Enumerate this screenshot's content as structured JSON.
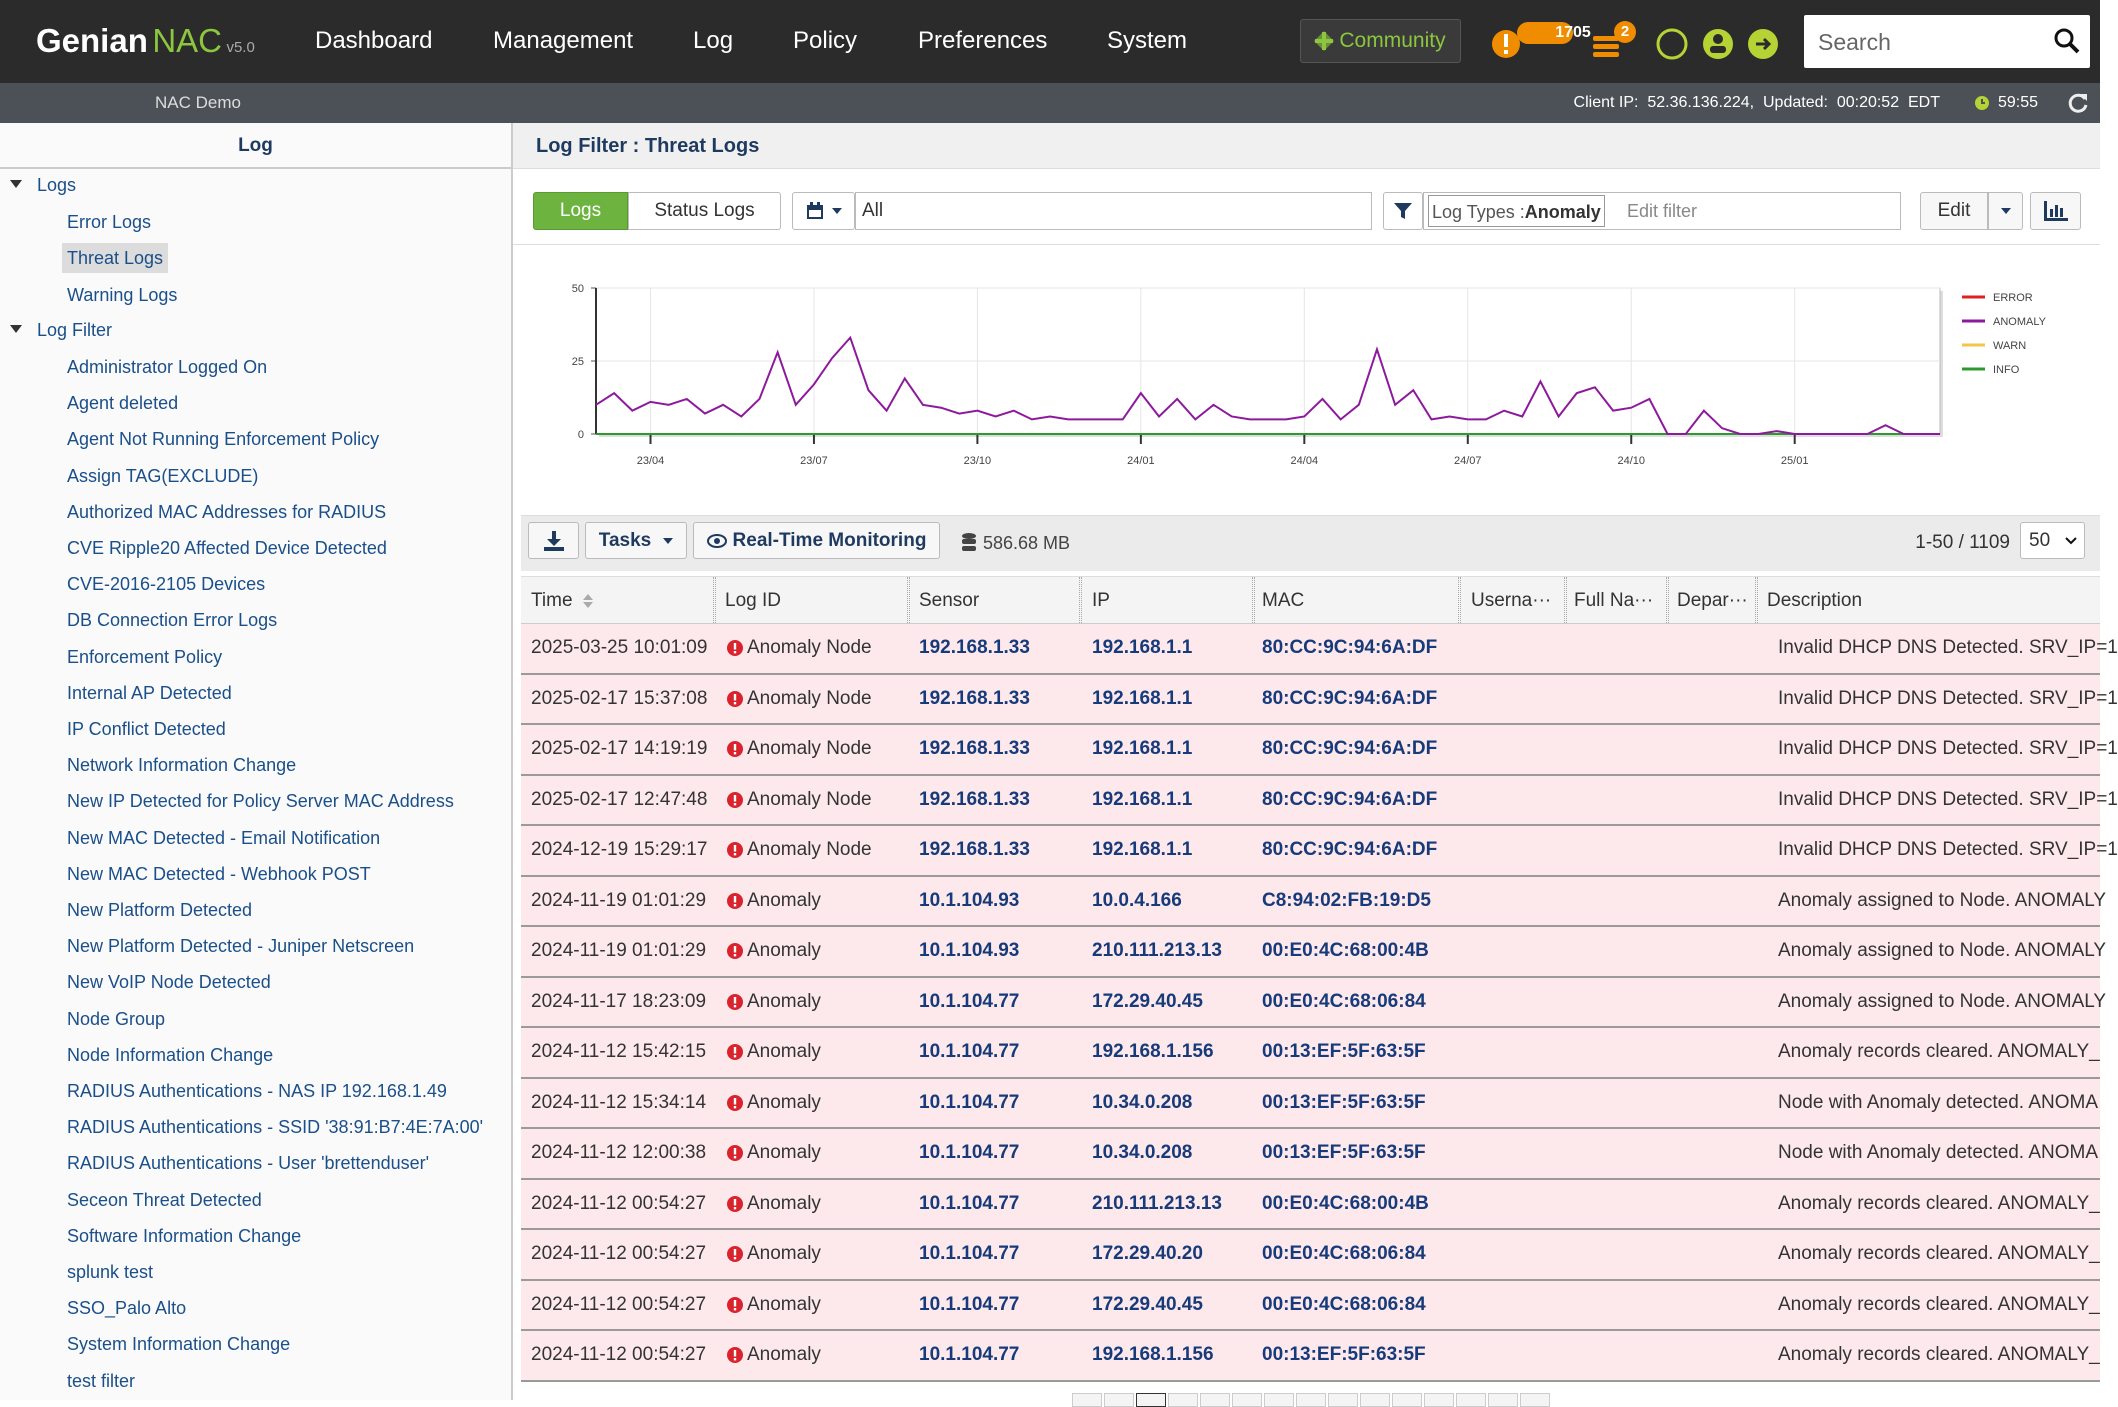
{
  "header": {
    "logo": {
      "brand": "Genian",
      "product": "NAC",
      "version": "v5.0"
    },
    "nav": [
      "Dashboard",
      "Management",
      "Log",
      "Policy",
      "Preferences",
      "System"
    ],
    "community": "Community",
    "alerts_badge": "1705",
    "tasks_badge": "2",
    "search_placeholder": "Search"
  },
  "subbar": {
    "site": "NAC Demo",
    "status": "Client IP:  52.36.136.224,  Updated:  00:20:52  EDT",
    "timer": "59:55"
  },
  "sidebar": {
    "title": "Log",
    "selected": "Threat Logs",
    "groups": [
      {
        "label": "Logs",
        "items": [
          "Error Logs",
          "Threat Logs",
          "Warning Logs"
        ]
      },
      {
        "label": "Log Filter",
        "items": [
          "Administrator Logged On",
          "Agent deleted",
          "Agent Not Running Enforcement Policy",
          "Assign TAG(EXCLUDE)",
          "Authorized MAC Addresses for RADIUS",
          "CVE Ripple20 Affected Device Detected",
          "CVE-2016-2105 Devices",
          "DB Connection Error Logs",
          "Enforcement Policy",
          "Internal AP Detected",
          "IP Conflict Detected",
          "Network Information Change",
          "New IP Detected for Policy Server MAC Address",
          "New MAC Detected - Email Notification",
          "New MAC Detected - Webhook POST",
          "New Platform Detected",
          "New Platform Detected - Juniper Netscreen",
          "New VoIP Node Detected",
          "Node Group",
          "Node Information Change",
          "RADIUS Authentications - NAS IP 192.168.1.49",
          "RADIUS Authentications - SSID '38:91:B7:4E:7A:00'",
          "RADIUS Authentications - User 'brettenduser'",
          "Seceon Threat Detected",
          "Software Information Change",
          "splunk test",
          "SSO_Palo Alto",
          "System Information Change",
          "test filter"
        ]
      }
    ]
  },
  "panel": {
    "title": "Log Filter : Threat Logs",
    "filter": {
      "tabs": [
        "Logs",
        "Status Logs"
      ],
      "period": "All",
      "log_types_label": "Log Types :",
      "log_types_value": "Anomaly",
      "edit_placeholder": "Edit filter",
      "edit_button": "Edit"
    }
  },
  "chart_data": {
    "type": "line",
    "categories": [
      null,
      null,
      null,
      "23/04",
      null,
      null,
      null,
      null,
      null,
      null,
      null,
      null,
      "23/07",
      null,
      null,
      null,
      null,
      null,
      null,
      null,
      null,
      "23/10",
      null,
      null,
      null,
      null,
      null,
      null,
      null,
      null,
      "24/01",
      null,
      null,
      null,
      null,
      null,
      null,
      null,
      null,
      "24/04",
      null,
      null,
      null,
      null,
      null,
      null,
      null,
      null,
      "24/07",
      null,
      null,
      null,
      null,
      null,
      null,
      null,
      null,
      "24/10",
      null,
      null,
      null,
      null,
      null,
      null,
      null,
      null,
      "25/01",
      null,
      null,
      null,
      null,
      null,
      null,
      null,
      null
    ],
    "ylim": [
      0,
      50
    ],
    "yticks": [
      0,
      25,
      50
    ],
    "grid": true,
    "legend": "right",
    "series": [
      {
        "name": "ERROR",
        "color": "#e0201e",
        "values": [
          0,
          0,
          0,
          0,
          0,
          0,
          0,
          0,
          0,
          0,
          0,
          0,
          0,
          0,
          0,
          0,
          0,
          0,
          0,
          0,
          0,
          0,
          0,
          0,
          0,
          0,
          0,
          0,
          0,
          0,
          0,
          0,
          0,
          0,
          0,
          0,
          0,
          0,
          0,
          0,
          0,
          0,
          0,
          0,
          0,
          0,
          0,
          0,
          0,
          0,
          0,
          0,
          0,
          0,
          0,
          0,
          0,
          0,
          0,
          0,
          0,
          0,
          0,
          0,
          0,
          0,
          0,
          0,
          0,
          0,
          0,
          0,
          0,
          0,
          0
        ]
      },
      {
        "name": "ANOMALY",
        "color": "#8d1a9c",
        "values": [
          10,
          14,
          8,
          11,
          10,
          12,
          7,
          10,
          6,
          12,
          28,
          10,
          17,
          26,
          33,
          15,
          8,
          19,
          10,
          9,
          7,
          8,
          6,
          8,
          5,
          6,
          5,
          5,
          5,
          5,
          14,
          6,
          12,
          5,
          10,
          6,
          5,
          5,
          5,
          6,
          12,
          5,
          10,
          29,
          10,
          15,
          5,
          6,
          5,
          5,
          8,
          6,
          18,
          6,
          14,
          16,
          8,
          9,
          12,
          0,
          0,
          8,
          2,
          0,
          0,
          1,
          0,
          0,
          0,
          0,
          0,
          3,
          0,
          0,
          0
        ]
      },
      {
        "name": "WARN",
        "color": "#f3c64a",
        "values": [
          0,
          0,
          0,
          0,
          0,
          0,
          0,
          0,
          0,
          0,
          0,
          0,
          0,
          0,
          0,
          0,
          0,
          0,
          0,
          0,
          0,
          0,
          0,
          0,
          0,
          0,
          0,
          0,
          0,
          0,
          0,
          0,
          0,
          0,
          0,
          0,
          0,
          0,
          0,
          0,
          0,
          0,
          0,
          0,
          0,
          0,
          0,
          0,
          0,
          0,
          0,
          0,
          0,
          0,
          0,
          0,
          0,
          0,
          0,
          0,
          0,
          0,
          0,
          0,
          0,
          0,
          0,
          0,
          0,
          0,
          0,
          0,
          0,
          0,
          0
        ]
      },
      {
        "name": "INFO",
        "color": "#2e9a2e",
        "values": [
          0,
          0,
          0,
          0,
          0,
          0,
          0,
          0,
          0,
          0,
          0,
          0,
          0,
          0,
          0,
          0,
          0,
          0,
          0,
          0,
          0,
          0,
          0,
          0,
          0,
          0,
          0,
          0,
          0,
          0,
          0,
          0,
          0,
          0,
          0,
          0,
          0,
          0,
          0,
          0,
          0,
          0,
          0,
          0,
          0,
          0,
          0,
          0,
          0,
          0,
          0,
          0,
          0,
          0,
          0,
          0,
          0,
          0,
          0,
          0,
          0,
          0,
          0,
          0,
          0,
          0,
          0,
          0,
          0,
          0,
          0,
          0,
          0,
          0,
          0
        ]
      }
    ]
  },
  "table": {
    "tasks": "Tasks",
    "monitoring": "Real-Time Monitoring",
    "size": "586.68 MB",
    "range": "1-50 / 1109",
    "page_size": "50",
    "columns": [
      "Time",
      "Log ID",
      "Sensor",
      "IP",
      "MAC",
      "Userna···",
      "Full Na···",
      "Depar···",
      "Description"
    ],
    "rows": [
      [
        "2025-03-25 10:01:09",
        "Anomaly Node",
        "192.168.1.33",
        "192.168.1.1",
        "80:CC:9C:94:6A:DF",
        "Invalid DHCP DNS Detected. SRV_IP=1"
      ],
      [
        "2025-02-17 15:37:08",
        "Anomaly Node",
        "192.168.1.33",
        "192.168.1.1",
        "80:CC:9C:94:6A:DF",
        "Invalid DHCP DNS Detected. SRV_IP=1"
      ],
      [
        "2025-02-17 14:19:19",
        "Anomaly Node",
        "192.168.1.33",
        "192.168.1.1",
        "80:CC:9C:94:6A:DF",
        "Invalid DHCP DNS Detected. SRV_IP=1"
      ],
      [
        "2025-02-17 12:47:48",
        "Anomaly Node",
        "192.168.1.33",
        "192.168.1.1",
        "80:CC:9C:94:6A:DF",
        "Invalid DHCP DNS Detected. SRV_IP=1"
      ],
      [
        "2024-12-19 15:29:17",
        "Anomaly Node",
        "192.168.1.33",
        "192.168.1.1",
        "80:CC:9C:94:6A:DF",
        "Invalid DHCP DNS Detected. SRV_IP=1"
      ],
      [
        "2024-11-19 01:01:29",
        "Anomaly",
        "10.1.104.93",
        "10.0.4.166",
        "C8:94:02:FB:19:D5",
        "Anomaly assigned to Node. ANOMALY"
      ],
      [
        "2024-11-19 01:01:29",
        "Anomaly",
        "10.1.104.93",
        "210.111.213.13",
        "00:E0:4C:68:00:4B",
        "Anomaly assigned to Node. ANOMALY"
      ],
      [
        "2024-11-17 18:23:09",
        "Anomaly",
        "10.1.104.77",
        "172.29.40.45",
        "00:E0:4C:68:06:84",
        "Anomaly assigned to Node. ANOMALY"
      ],
      [
        "2024-11-12 15:42:15",
        "Anomaly",
        "10.1.104.77",
        "192.168.1.156",
        "00:13:EF:5F:63:5F",
        "Anomaly records cleared. ANOMALY_"
      ],
      [
        "2024-11-12 15:34:14",
        "Anomaly",
        "10.1.104.77",
        "10.34.0.208",
        "00:13:EF:5F:63:5F",
        "Node with Anomaly detected. ANOMA"
      ],
      [
        "2024-11-12 12:00:38",
        "Anomaly",
        "10.1.104.77",
        "10.34.0.208",
        "00:13:EF:5F:63:5F",
        "Node with Anomaly detected. ANOMA"
      ],
      [
        "2024-11-12 00:54:27",
        "Anomaly",
        "10.1.104.77",
        "210.111.213.13",
        "00:E0:4C:68:00:4B",
        "Anomaly records cleared. ANOMALY_"
      ],
      [
        "2024-11-12 00:54:27",
        "Anomaly",
        "10.1.104.77",
        "172.29.40.20",
        "00:E0:4C:68:06:84",
        "Anomaly records cleared. ANOMALY_"
      ],
      [
        "2024-11-12 00:54:27",
        "Anomaly",
        "10.1.104.77",
        "172.29.40.45",
        "00:E0:4C:68:06:84",
        "Anomaly records cleared. ANOMALY_"
      ],
      [
        "2024-11-12 00:54:27",
        "Anomaly",
        "10.1.104.77",
        "192.168.1.156",
        "00:13:EF:5F:63:5F",
        "Anomaly records cleared. ANOMALY_"
      ]
    ]
  }
}
